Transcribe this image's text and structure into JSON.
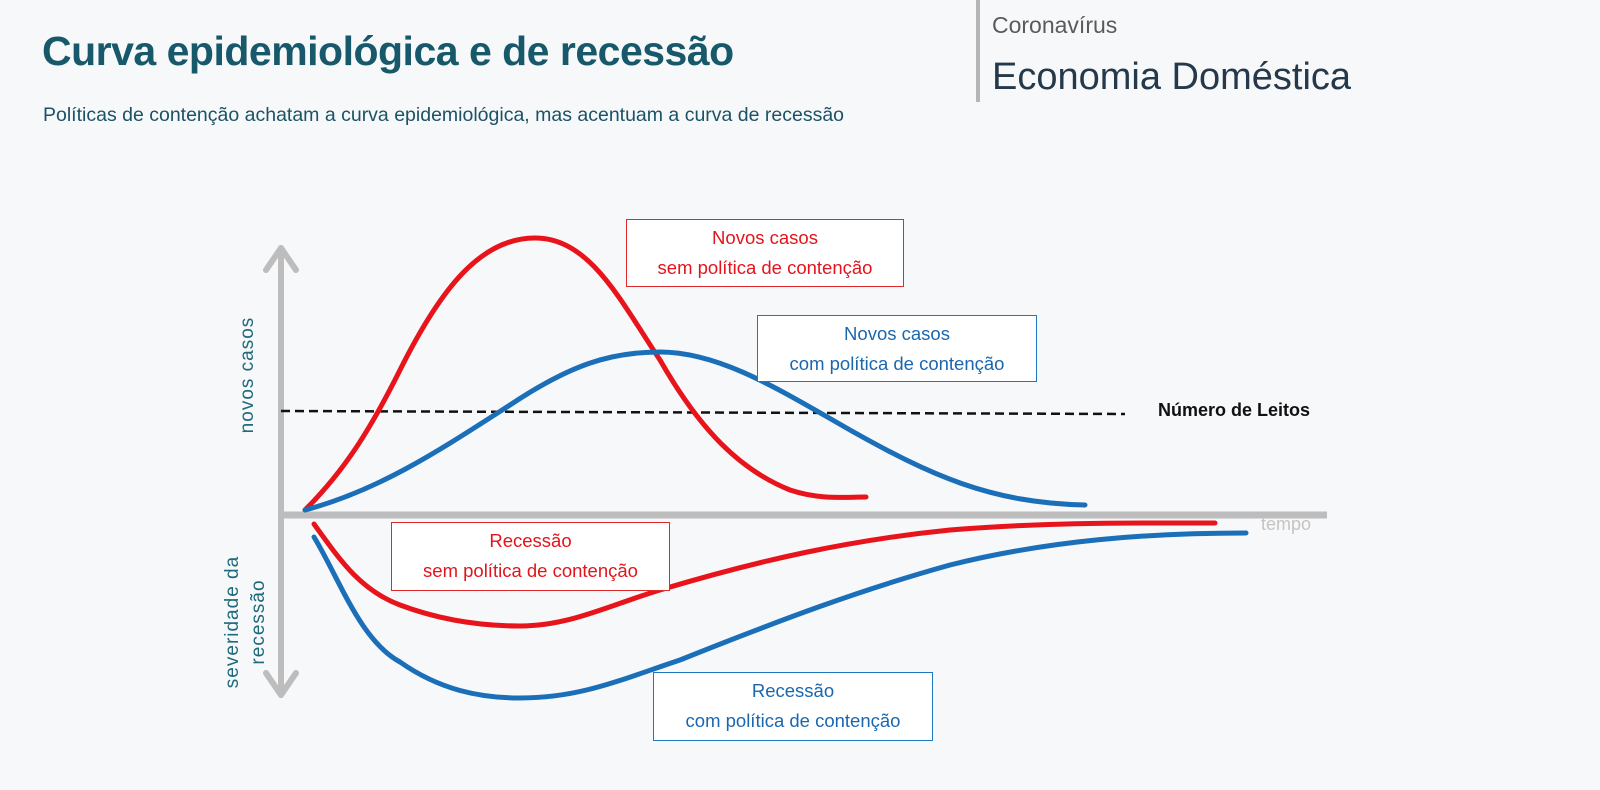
{
  "header": {
    "title": "Curva epidemiológica e de recessão",
    "subtitle": "Políticas de contenção achatam a curva epidemiológica, mas acentuam a curva de recessão",
    "section": "Coronavírus",
    "brand": "Economia Doméstica"
  },
  "diagram": {
    "y_axis_upper_label": "novos casos",
    "y_axis_lower_label_1": "severidade da",
    "y_axis_lower_label_2": "recessão",
    "x_axis_label": "tempo",
    "threshold_label": "Número de Leitos",
    "boxes": [
      {
        "line1": "Novos casos",
        "line2": "sem política de contenção",
        "color": "#e3141b"
      },
      {
        "line1": "Novos casos",
        "line2": "com política de contenção",
        "color": "#1a67b0"
      },
      {
        "line1": "Recessão",
        "line2": "sem política de contenção",
        "color": "#e3141b"
      },
      {
        "line1": "Recessão",
        "line2": "com política de contenção",
        "color": "#1a67b0"
      }
    ],
    "colors": {
      "red": "#e8141b",
      "blue": "#1a6fb8",
      "axis": "#bdbdbd"
    }
  }
}
